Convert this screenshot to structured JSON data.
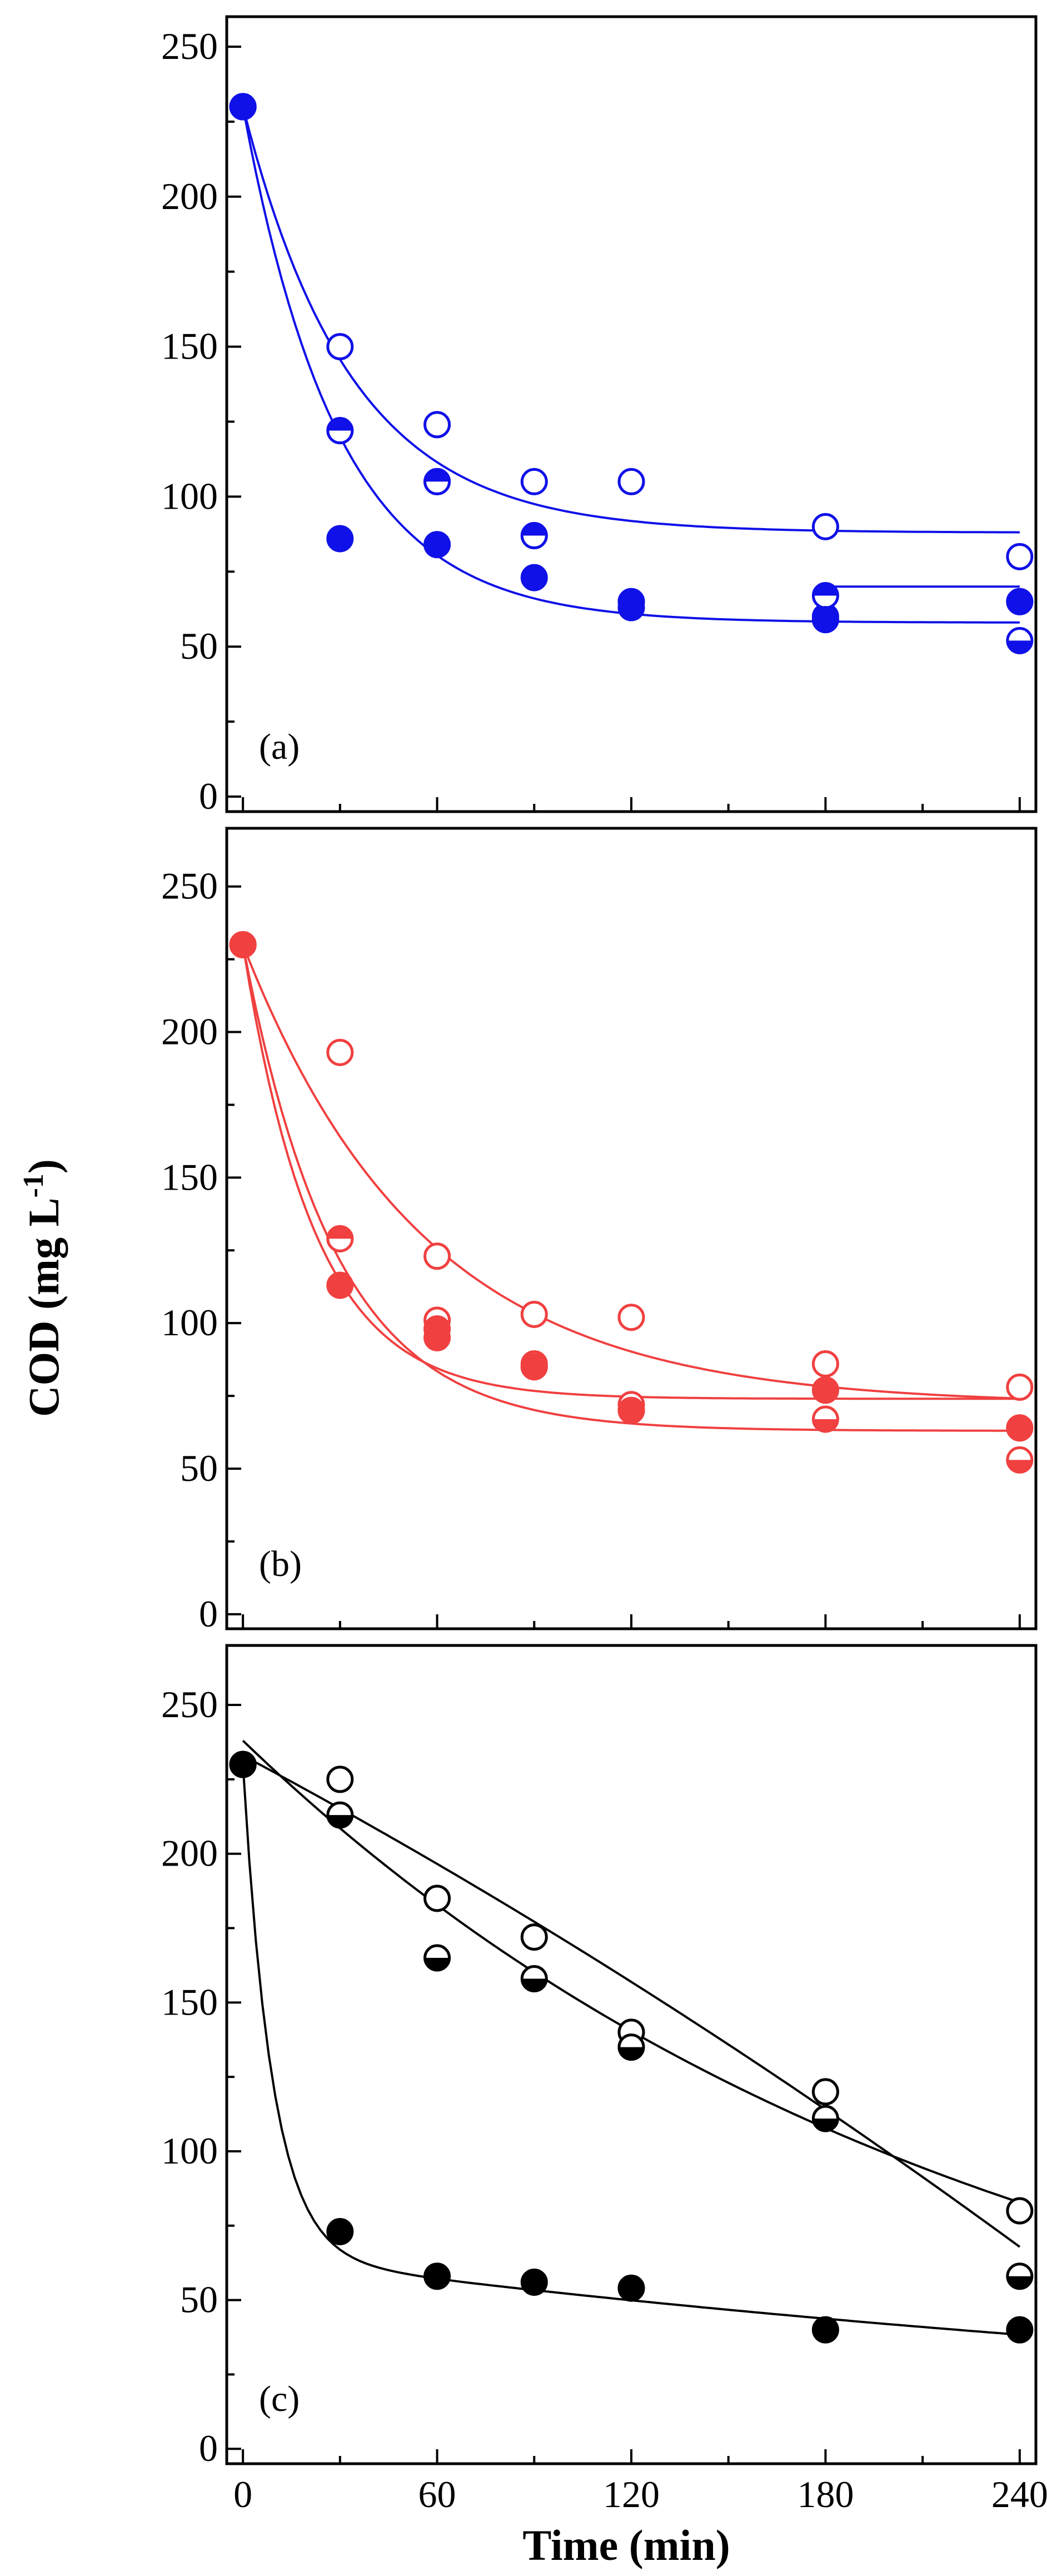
{
  "figure": {
    "ylabel_main": "COD (mg L",
    "ylabel_sup": "-1",
    "ylabel_close": ")",
    "xlabel": "Time (min)"
  },
  "chart_data": [
    {
      "type": "scatter",
      "panel_label": "(a)",
      "color": "#1010e8",
      "xlim": [
        -5,
        245
      ],
      "ylim": [
        -5,
        260
      ],
      "x_ticks": [
        0,
        60,
        120,
        180,
        240
      ],
      "x_tick_labels": [],
      "y_ticks": [
        0,
        50,
        100,
        150,
        200,
        250
      ],
      "y_tick_labels": [
        "0",
        "50",
        "100",
        "150",
        "200",
        "250"
      ],
      "series": [
        {
          "marker": "open",
          "x": [
            0,
            30,
            60,
            90,
            120,
            180,
            240
          ],
          "y": [
            230,
            150,
            124,
            105,
            105,
            90,
            80
          ]
        },
        {
          "marker": "half-bottom",
          "x": [
            0,
            30,
            60,
            90,
            120,
            180,
            240
          ],
          "y": [
            230,
            122,
            105,
            87,
            65,
            60,
            52
          ]
        },
        {
          "marker": "half-top",
          "x": [
            0,
            30,
            60,
            90,
            120,
            180,
            240
          ],
          "y": [
            230,
            122,
            105,
            87,
            65,
            67,
            65
          ]
        },
        {
          "marker": "filled",
          "x": [
            0,
            30,
            60,
            90,
            120,
            180,
            240
          ],
          "y": [
            230,
            86,
            84,
            73,
            63,
            59,
            65
          ]
        }
      ],
      "fit_curves": [
        {
          "form": "exp_decay",
          "y0": 230,
          "yinf": 88,
          "k": 0.03
        },
        {
          "form": "exp_decay",
          "y0": 230,
          "yinf": 58,
          "k": 0.034
        }
      ],
      "segments": [
        {
          "x": [
            182,
            240
          ],
          "y": [
            70,
            70
          ]
        }
      ]
    },
    {
      "type": "scatter",
      "panel_label": "(b)",
      "color": "#f04040",
      "xlim": [
        -5,
        245
      ],
      "ylim": [
        -5,
        270
      ],
      "x_ticks": [
        0,
        60,
        120,
        180,
        240
      ],
      "x_tick_labels": [],
      "y_ticks": [
        0,
        50,
        100,
        150,
        200,
        250
      ],
      "y_tick_labels": [
        "0",
        "50",
        "100",
        "150",
        "200",
        "250"
      ],
      "series": [
        {
          "marker": "open",
          "x": [
            0,
            30,
            60,
            90,
            120,
            180,
            240
          ],
          "y": [
            230,
            193,
            123,
            103,
            102,
            86,
            78
          ]
        },
        {
          "marker": "half-bottom",
          "x": [
            0,
            30,
            60,
            90,
            120,
            180,
            240
          ],
          "y": [
            230,
            129,
            101,
            86,
            72,
            67,
            53
          ]
        },
        {
          "marker": "half-top",
          "x": [
            0,
            30,
            60,
            90,
            120,
            180,
            240
          ],
          "y": [
            230,
            129,
            98,
            85,
            70,
            77,
            64
          ]
        },
        {
          "marker": "filled",
          "x": [
            0,
            30,
            60,
            90,
            120,
            180,
            240
          ],
          "y": [
            230,
            113,
            95,
            85,
            70,
            77,
            64
          ]
        }
      ],
      "fit_curves": [
        {
          "form": "exp_decay",
          "y0": 230,
          "yinf": 72,
          "k": 0.018
        },
        {
          "form": "exp_decay",
          "y0": 230,
          "yinf": 74,
          "k": 0.045
        },
        {
          "form": "exp_decay",
          "y0": 230,
          "yinf": 63,
          "k": 0.035
        }
      ],
      "segments": []
    },
    {
      "type": "scatter",
      "panel_label": "(c)",
      "color": "#000000",
      "xlim": [
        -5,
        245
      ],
      "ylim": [
        -5,
        270
      ],
      "x_ticks": [
        0,
        60,
        120,
        180,
        240
      ],
      "x_tick_labels": [
        "0",
        "60",
        "120",
        "180",
        "240"
      ],
      "y_ticks": [
        0,
        50,
        100,
        150,
        200,
        250
      ],
      "y_tick_labels": [
        "0",
        "50",
        "100",
        "150",
        "200",
        "250"
      ],
      "series": [
        {
          "marker": "open",
          "x": [
            0,
            30,
            60,
            90,
            120,
            180,
            240
          ],
          "y": [
            230,
            225,
            185,
            172,
            140,
            120,
            80
          ]
        },
        {
          "marker": "half-bottom",
          "x": [
            0,
            30,
            60,
            90,
            120,
            180,
            240
          ],
          "y": [
            230,
            213,
            165,
            158,
            135,
            111,
            58
          ]
        },
        {
          "marker": "filled",
          "x": [
            0,
            30,
            60,
            90,
            120,
            180,
            240
          ],
          "y": [
            230,
            73,
            58,
            56,
            54,
            40,
            40
          ]
        }
      ],
      "fit_curves": [
        {
          "form": "exp_decay",
          "y0": 238,
          "yinf": 0,
          "k": 0.0044
        },
        {
          "form": "poly",
          "coef": [
            233,
            -0.58,
            -0.00045
          ]
        },
        {
          "form": "double_exp",
          "a1": 165,
          "k1": 0.11,
          "a2": 65,
          "k2": 0.0022
        }
      ],
      "segments": []
    }
  ]
}
